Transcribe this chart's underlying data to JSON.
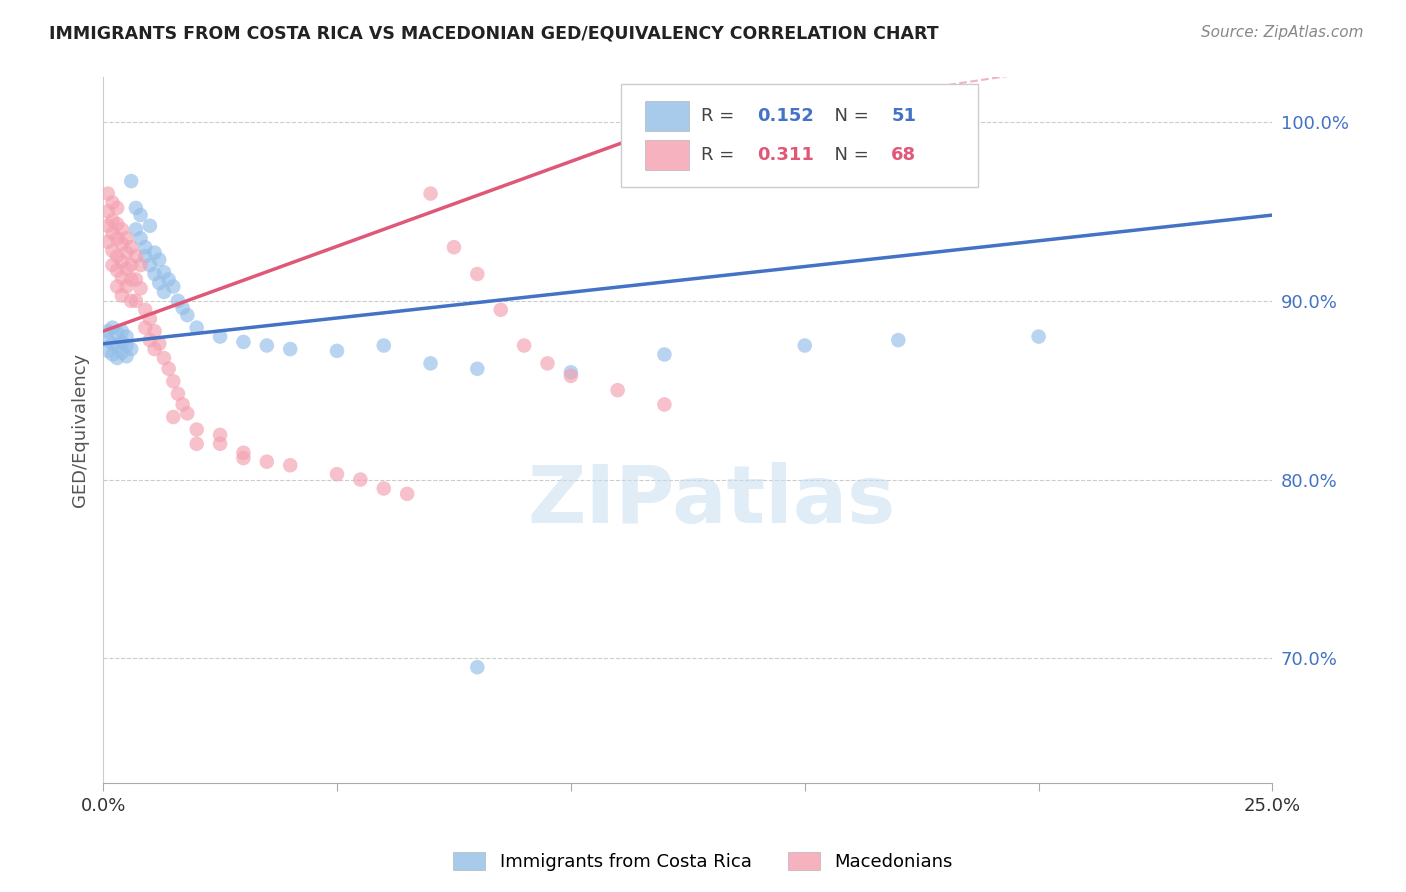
{
  "title": "IMMIGRANTS FROM COSTA RICA VS MACEDONIAN GED/EQUIVALENCY CORRELATION CHART",
  "source": "Source: ZipAtlas.com",
  "ylabel": "GED/Equivalency",
  "xmin": 0.0,
  "xmax": 0.25,
  "ymin": 0.63,
  "ymax": 1.025,
  "watermark": "ZIPatlas",
  "costa_rica_color": "#92BEE8",
  "macedonian_color": "#F4A0B0",
  "costa_rica_line_color": "#4472C4",
  "macedonian_line_color": "#E05878",
  "costa_rica_R": 0.152,
  "macedonian_R": 0.311,
  "costa_rica_N": 51,
  "macedonian_N": 68,
  "ytick_vals": [
    0.7,
    0.8,
    0.9,
    1.0
  ],
  "costa_rica_line": [
    0.0,
    0.876,
    0.25,
    0.948
  ],
  "macedonian_line_solid": [
    0.0,
    0.883,
    0.12,
    0.997
  ],
  "macedonian_line_dash": [
    0.12,
    0.997,
    0.25,
    1.048
  ],
  "costa_rica_points": [
    [
      0.001,
      0.872
    ],
    [
      0.001,
      0.878
    ],
    [
      0.001,
      0.883
    ],
    [
      0.002,
      0.87
    ],
    [
      0.002,
      0.876
    ],
    [
      0.002,
      0.885
    ],
    [
      0.003,
      0.868
    ],
    [
      0.003,
      0.875
    ],
    [
      0.003,
      0.882
    ],
    [
      0.004,
      0.871
    ],
    [
      0.004,
      0.877
    ],
    [
      0.004,
      0.883
    ],
    [
      0.005,
      0.869
    ],
    [
      0.005,
      0.875
    ],
    [
      0.005,
      0.88
    ],
    [
      0.006,
      0.873
    ],
    [
      0.006,
      0.967
    ],
    [
      0.007,
      0.952
    ],
    [
      0.007,
      0.94
    ],
    [
      0.008,
      0.948
    ],
    [
      0.008,
      0.935
    ],
    [
      0.009,
      0.93
    ],
    [
      0.009,
      0.925
    ],
    [
      0.01,
      0.942
    ],
    [
      0.01,
      0.92
    ],
    [
      0.011,
      0.927
    ],
    [
      0.011,
      0.915
    ],
    [
      0.012,
      0.923
    ],
    [
      0.012,
      0.91
    ],
    [
      0.013,
      0.916
    ],
    [
      0.013,
      0.905
    ],
    [
      0.014,
      0.912
    ],
    [
      0.015,
      0.908
    ],
    [
      0.016,
      0.9
    ],
    [
      0.017,
      0.896
    ],
    [
      0.018,
      0.892
    ],
    [
      0.02,
      0.885
    ],
    [
      0.025,
      0.88
    ],
    [
      0.03,
      0.877
    ],
    [
      0.035,
      0.875
    ],
    [
      0.04,
      0.873
    ],
    [
      0.05,
      0.872
    ],
    [
      0.06,
      0.875
    ],
    [
      0.07,
      0.865
    ],
    [
      0.08,
      0.695
    ],
    [
      0.1,
      0.86
    ],
    [
      0.12,
      0.87
    ],
    [
      0.15,
      0.875
    ],
    [
      0.17,
      0.878
    ],
    [
      0.2,
      0.88
    ],
    [
      0.08,
      0.862
    ]
  ],
  "macedonian_points": [
    [
      0.001,
      0.96
    ],
    [
      0.001,
      0.95
    ],
    [
      0.001,
      0.942
    ],
    [
      0.001,
      0.933
    ],
    [
      0.002,
      0.955
    ],
    [
      0.002,
      0.945
    ],
    [
      0.002,
      0.938
    ],
    [
      0.002,
      0.928
    ],
    [
      0.002,
      0.92
    ],
    [
      0.003,
      0.952
    ],
    [
      0.003,
      0.943
    ],
    [
      0.003,
      0.935
    ],
    [
      0.003,
      0.925
    ],
    [
      0.003,
      0.917
    ],
    [
      0.003,
      0.908
    ],
    [
      0.004,
      0.94
    ],
    [
      0.004,
      0.932
    ],
    [
      0.004,
      0.922
    ],
    [
      0.004,
      0.913
    ],
    [
      0.004,
      0.903
    ],
    [
      0.005,
      0.935
    ],
    [
      0.005,
      0.927
    ],
    [
      0.005,
      0.918
    ],
    [
      0.005,
      0.908
    ],
    [
      0.006,
      0.93
    ],
    [
      0.006,
      0.92
    ],
    [
      0.006,
      0.912
    ],
    [
      0.006,
      0.9
    ],
    [
      0.007,
      0.925
    ],
    [
      0.007,
      0.912
    ],
    [
      0.007,
      0.9
    ],
    [
      0.008,
      0.92
    ],
    [
      0.008,
      0.907
    ],
    [
      0.009,
      0.895
    ],
    [
      0.009,
      0.885
    ],
    [
      0.01,
      0.89
    ],
    [
      0.01,
      0.878
    ],
    [
      0.011,
      0.883
    ],
    [
      0.011,
      0.873
    ],
    [
      0.012,
      0.876
    ],
    [
      0.013,
      0.868
    ],
    [
      0.014,
      0.862
    ],
    [
      0.015,
      0.855
    ],
    [
      0.016,
      0.848
    ],
    [
      0.017,
      0.842
    ],
    [
      0.018,
      0.837
    ],
    [
      0.02,
      0.828
    ],
    [
      0.025,
      0.82
    ],
    [
      0.03,
      0.815
    ],
    [
      0.035,
      0.81
    ],
    [
      0.04,
      0.808
    ],
    [
      0.05,
      0.803
    ],
    [
      0.055,
      0.8
    ],
    [
      0.06,
      0.795
    ],
    [
      0.065,
      0.792
    ],
    [
      0.07,
      0.96
    ],
    [
      0.075,
      0.93
    ],
    [
      0.08,
      0.915
    ],
    [
      0.085,
      0.895
    ],
    [
      0.09,
      0.875
    ],
    [
      0.095,
      0.865
    ],
    [
      0.1,
      0.858
    ],
    [
      0.11,
      0.85
    ],
    [
      0.12,
      0.842
    ],
    [
      0.02,
      0.82
    ],
    [
      0.025,
      0.825
    ],
    [
      0.03,
      0.812
    ],
    [
      0.015,
      0.835
    ]
  ]
}
